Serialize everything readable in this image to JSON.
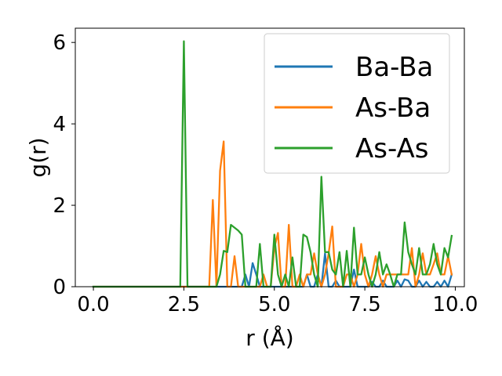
{
  "chart_data": {
    "type": "line",
    "xlabel": "r (Å)",
    "ylabel": "g(r)",
    "xlim": [
      -0.5,
      10.25
    ],
    "ylim": [
      0,
      6.35
    ],
    "xticks": [
      0.0,
      2.5,
      5.0,
      7.5,
      10.0
    ],
    "xtick_labels": [
      "0.0",
      "2.5",
      "5.0",
      "7.5",
      "10.0"
    ],
    "yticks": [
      0,
      2,
      4,
      6
    ],
    "ytick_labels": [
      "0",
      "2",
      "4",
      "6"
    ],
    "grid": false,
    "legend_position": "top-right",
    "series": [
      {
        "name": "Ba-Ba",
        "color": "#1f77b4",
        "x": [
          0.0,
          2.4,
          2.5,
          2.6,
          3.0,
          3.1,
          3.2,
          3.3,
          3.4,
          3.5,
          3.6,
          3.7,
          3.8,
          3.9,
          4.0,
          4.1,
          4.2,
          4.3,
          4.4,
          4.5,
          4.6,
          4.7,
          4.8,
          4.9,
          5.0,
          5.1,
          5.2,
          5.3,
          5.4,
          5.5,
          5.6,
          5.7,
          5.8,
          5.9,
          6.0,
          6.1,
          6.2,
          6.3,
          6.4,
          6.5,
          6.6,
          6.7,
          6.8,
          6.9,
          7.0,
          7.1,
          7.2,
          7.3,
          7.4,
          7.5,
          7.6,
          7.7,
          7.8,
          7.9,
          8.0,
          8.1,
          8.2,
          8.3,
          8.4,
          8.5,
          8.6,
          8.7,
          8.8,
          8.9,
          9.0,
          9.1,
          9.2,
          9.3,
          9.4,
          9.5,
          9.6,
          9.7,
          9.8,
          9.9
        ],
        "y": [
          0,
          0,
          0,
          0,
          0,
          0,
          0,
          0,
          0,
          0,
          0,
          0,
          0,
          0,
          0,
          0,
          0.3,
          0,
          0.58,
          0.3,
          0,
          0,
          0,
          0,
          0,
          0,
          0,
          0,
          0,
          0,
          0,
          0,
          0,
          0.3,
          0,
          0,
          0.3,
          0,
          0.82,
          0,
          0,
          0.15,
          0,
          0,
          0,
          0,
          0.42,
          0,
          0,
          0,
          0,
          0.12,
          0,
          0,
          0.15,
          0,
          0,
          0,
          0.15,
          0,
          0.18,
          0.15,
          0,
          0,
          0.15,
          0,
          0.12,
          0,
          0,
          0.12,
          0,
          0.15,
          0,
          0.3
        ]
      },
      {
        "name": "As-Ba",
        "color": "#ff7f0e",
        "x": [
          0.0,
          2.4,
          2.5,
          2.6,
          3.0,
          3.1,
          3.2,
          3.3,
          3.4,
          3.5,
          3.6,
          3.7,
          3.8,
          3.9,
          4.0,
          4.1,
          4.2,
          4.3,
          4.4,
          4.5,
          4.6,
          4.7,
          4.8,
          4.9,
          5.0,
          5.1,
          5.2,
          5.3,
          5.4,
          5.5,
          5.6,
          5.7,
          5.8,
          5.9,
          6.0,
          6.1,
          6.2,
          6.3,
          6.4,
          6.5,
          6.6,
          6.7,
          6.8,
          6.9,
          7.0,
          7.1,
          7.2,
          7.3,
          7.4,
          7.5,
          7.6,
          7.7,
          7.8,
          7.9,
          8.0,
          8.1,
          8.2,
          8.3,
          8.4,
          8.5,
          8.6,
          8.7,
          8.8,
          8.9,
          9.0,
          9.1,
          9.2,
          9.3,
          9.4,
          9.5,
          9.6,
          9.7,
          9.8,
          9.9
        ],
        "y": [
          0,
          0,
          0,
          0,
          0,
          0,
          0,
          2.13,
          0,
          2.85,
          3.57,
          0,
          0,
          0.75,
          0,
          0,
          0,
          0,
          0,
          0,
          0,
          0.3,
          0,
          0,
          0.95,
          1.32,
          0,
          0,
          1.52,
          0,
          0,
          0.3,
          0,
          0.3,
          0.3,
          0.82,
          0.3,
          0,
          0.3,
          0.82,
          1.48,
          0,
          0,
          0,
          0.3,
          0.3,
          0,
          0.3,
          1.05,
          0.3,
          0,
          0.3,
          0.75,
          0.3,
          0,
          0.3,
          0.3,
          0.3,
          0.3,
          0.3,
          0.3,
          0.3,
          0.95,
          0,
          0.3,
          0.82,
          0.3,
          0.3,
          0.55,
          0.82,
          0.3,
          0.3,
          0.75,
          0.3
        ]
      },
      {
        "name": "As-As",
        "color": "#2ca02c",
        "x": [
          0.0,
          2.4,
          2.5,
          2.6,
          3.0,
          3.1,
          3.2,
          3.3,
          3.4,
          3.5,
          3.6,
          3.7,
          3.8,
          3.9,
          4.0,
          4.1,
          4.2,
          4.3,
          4.4,
          4.5,
          4.6,
          4.7,
          4.8,
          4.9,
          5.0,
          5.1,
          5.2,
          5.3,
          5.4,
          5.5,
          5.6,
          5.7,
          5.8,
          5.9,
          6.0,
          6.1,
          6.2,
          6.3,
          6.4,
          6.5,
          6.6,
          6.7,
          6.8,
          6.9,
          7.0,
          7.1,
          7.2,
          7.3,
          7.4,
          7.5,
          7.6,
          7.7,
          7.8,
          7.9,
          8.0,
          8.1,
          8.2,
          8.3,
          8.4,
          8.5,
          8.6,
          8.7,
          8.8,
          8.9,
          9.0,
          9.1,
          9.2,
          9.3,
          9.4,
          9.5,
          9.6,
          9.7,
          9.8,
          9.9
        ],
        "y": [
          0,
          0,
          6.03,
          0,
          0,
          0,
          0,
          0,
          0,
          0.3,
          0.88,
          0.85,
          1.52,
          1.45,
          1.38,
          1.28,
          0,
          0,
          0,
          0,
          1.05,
          0,
          0,
          0,
          1.28,
          0.3,
          0,
          0.3,
          0,
          0.72,
          0,
          0,
          1.28,
          1.22,
          0.85,
          0.3,
          0,
          2.7,
          0.85,
          0.85,
          0.42,
          0.3,
          0.85,
          0,
          0.88,
          0,
          1.45,
          0.3,
          0.3,
          0.72,
          0.3,
          0,
          0.3,
          0.85,
          0.3,
          0.55,
          0.3,
          0,
          0.3,
          0.3,
          1.58,
          0.85,
          0.55,
          0.3,
          0.95,
          0.3,
          0.3,
          0.55,
          1.05,
          0.55,
          0.3,
          0.95,
          0.72,
          1.25
        ]
      }
    ]
  }
}
